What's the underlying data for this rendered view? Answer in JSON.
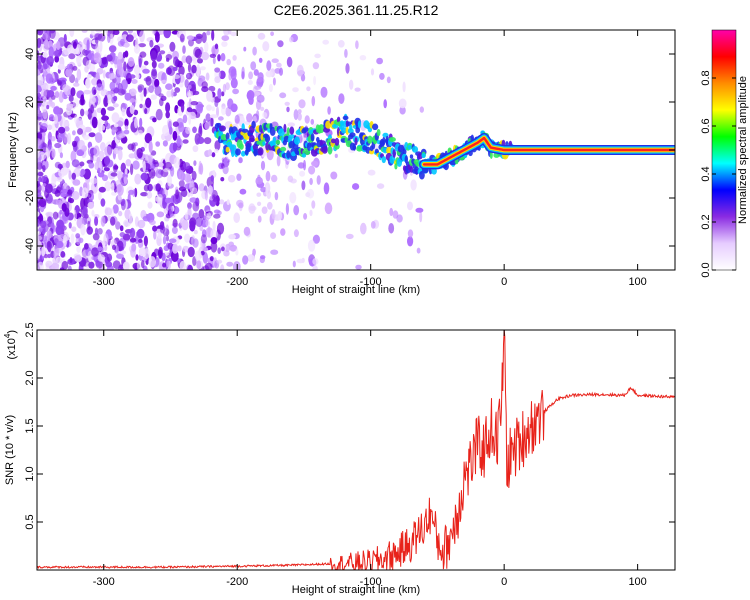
{
  "title": "C2E6.2025.361.11.25.R12",
  "chart_data": [
    {
      "type": "heatmap",
      "name": "spectrogram",
      "xlabel": "Height of straight line (km)",
      "ylabel": "Frequency (Hz)",
      "xlim": [
        -350,
        128
      ],
      "ylim": [
        -50,
        50
      ],
      "xticks": [
        -300,
        -200,
        -100,
        0,
        100
      ],
      "xtick_labels": [
        "-300",
        "-200",
        "-100",
        "0",
        "100"
      ],
      "yticks": [
        -40,
        -20,
        0,
        20,
        40
      ],
      "ytick_labels": [
        "-40",
        "-20",
        "0",
        "20",
        "40"
      ],
      "colorbar": {
        "label": "Normalized spectral amplitude",
        "range": [
          0,
          1
        ],
        "ticks": [
          0.0,
          0.2,
          0.4,
          0.6,
          0.8
        ],
        "tick_labels": [
          "0.0",
          "0.2",
          "0.4",
          "0.6",
          "0.8"
        ],
        "colors": [
          "#ffffff",
          "#e6ccff",
          "#8a2be2",
          "#0000ff",
          "#00ffff",
          "#00ff00",
          "#ffff00",
          "#ff8c00",
          "#ff0000",
          "#ff00aa"
        ]
      },
      "signal_trace": {
        "x": [
          -215,
          -200,
          -180,
          -160,
          -140,
          -120,
          -100,
          -80,
          -60,
          -50,
          -40,
          -30,
          -20,
          -15,
          -10,
          0,
          20,
          60,
          100,
          128
        ],
        "y": [
          5,
          4,
          5,
          3,
          4,
          8,
          5,
          -2,
          -6,
          -6,
          -3,
          0,
          3,
          5,
          1,
          0,
          0,
          0,
          0,
          0
        ]
      },
      "noise_region": {
        "x_from": -350,
        "x_to": -140
      }
    },
    {
      "type": "line",
      "name": "snr",
      "xlabel": "Height of straight line (km)",
      "ylabel": "SNR (10 * v/v)",
      "scale_label": "(x10",
      "scale_exponent": "4",
      "xlim": [
        -350,
        128
      ],
      "ylim": [
        0,
        2.5
      ],
      "xticks": [
        -300,
        -200,
        -100,
        0,
        100
      ],
      "xtick_labels": [
        "-300",
        "-200",
        "-100",
        "0",
        "100"
      ],
      "yticks": [
        0.5,
        1.0,
        1.5,
        2.0,
        2.5
      ],
      "ytick_labels": [
        "0.5",
        "1.0",
        "1.5",
        "2.0",
        "2.5"
      ],
      "series": [
        {
          "name": "SNR",
          "color": "#e8221a",
          "x": [
            -350,
            -300,
            -250,
            -200,
            -160,
            -140,
            -120,
            -100,
            -90,
            -80,
            -70,
            -60,
            -55,
            -50,
            -45,
            -40,
            -35,
            -30,
            -25,
            -20,
            -15,
            -10,
            -5,
            -2,
            0,
            2,
            5,
            10,
            20,
            30,
            40,
            50,
            70,
            90,
            95,
            100,
            128
          ],
          "y": [
            0.03,
            0.03,
            0.03,
            0.04,
            0.05,
            0.06,
            0.07,
            0.08,
            0.12,
            0.18,
            0.28,
            0.45,
            0.6,
            0.3,
            0.2,
            0.35,
            0.6,
            0.95,
            1.1,
            1.3,
            1.25,
            1.5,
            1.35,
            1.7,
            2.5,
            1.1,
            1.2,
            1.3,
            1.5,
            1.65,
            1.78,
            1.82,
            1.83,
            1.82,
            1.9,
            1.82,
            1.8
          ]
        }
      ]
    }
  ]
}
